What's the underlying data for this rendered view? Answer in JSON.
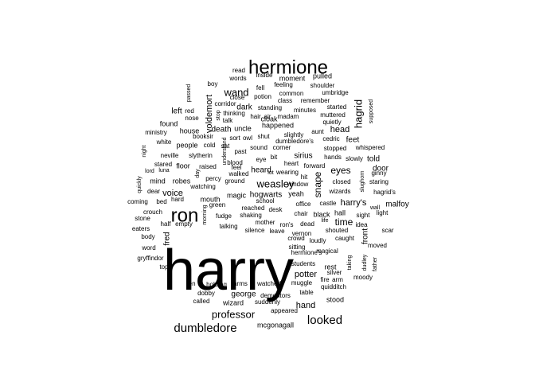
{
  "chart_data": {
    "type": "wordcloud",
    "title": "",
    "color": "#000000",
    "words": [
      {
        "text": "harry",
        "freq": 100
      },
      {
        "text": "hermione",
        "freq": 40
      },
      {
        "text": "ron",
        "freq": 38
      },
      {
        "text": "dumbledore",
        "freq": 22
      },
      {
        "text": "looked",
        "freq": 22
      },
      {
        "text": "professor",
        "freq": 20
      },
      {
        "text": "wand",
        "freq": 18
      },
      {
        "text": "weasley",
        "freq": 17
      },
      {
        "text": "hagrid",
        "freq": 15
      },
      {
        "text": "voice",
        "freq": 16
      },
      {
        "text": "head",
        "freq": 16
      },
      {
        "text": "eyes",
        "freq": 16
      },
      {
        "text": "time",
        "freq": 17
      },
      {
        "text": "harry's",
        "freq": 15
      },
      {
        "text": "potter",
        "freq": 14
      },
      {
        "text": "hand",
        "freq": 14
      },
      {
        "text": "snape",
        "freq": 14
      },
      {
        "text": "malfoy",
        "freq": 12
      },
      {
        "text": "door",
        "freq": 12
      },
      {
        "text": "told",
        "freq": 12
      },
      {
        "text": "feet",
        "freq": 12
      },
      {
        "text": "hogwarts",
        "freq": 12
      },
      {
        "text": "heard",
        "freq": 12
      },
      {
        "text": "left",
        "freq": 12
      },
      {
        "text": "voldemort",
        "freq": 11
      },
      {
        "text": "death",
        "freq": 11
      },
      {
        "text": "uncle",
        "freq": 10
      },
      {
        "text": "front",
        "freq": 10
      },
      {
        "text": "sirius",
        "freq": 10
      },
      {
        "text": "dark",
        "freq": 10
      },
      {
        "text": "fred",
        "freq": 10
      },
      {
        "text": "people",
        "freq": 10
      },
      {
        "text": "george",
        "freq": 10
      },
      {
        "text": "stood",
        "freq": 9
      },
      {
        "text": "wizard",
        "freq": 9
      },
      {
        "text": "mcgonagall",
        "freq": 9
      },
      {
        "text": "happened",
        "freq": 9
      },
      {
        "text": "found",
        "freq": 9
      },
      {
        "text": "house",
        "freq": 9
      },
      {
        "text": "floor",
        "freq": 9
      },
      {
        "text": "mind",
        "freq": 9
      },
      {
        "text": "robes",
        "freq": 9
      },
      {
        "text": "moment",
        "freq": 9
      },
      {
        "text": "pulled",
        "freq": 9
      },
      {
        "text": "cloak",
        "freq": 9
      },
      {
        "text": "yeah",
        "freq": 9
      },
      {
        "text": "rest",
        "freq": 8
      },
      {
        "text": "magic",
        "freq": 9
      },
      {
        "text": "mouth",
        "freq": 8
      },
      {
        "text": "hall",
        "freq": 8
      },
      {
        "text": "black",
        "freq": 9
      },
      {
        "text": "hermione's",
        "freq": 7
      },
      {
        "text": "read",
        "freq": 6
      },
      {
        "text": "words",
        "freq": 6
      },
      {
        "text": "inside",
        "freq": 6
      },
      {
        "text": "feeling",
        "freq": 6
      },
      {
        "text": "shoulder",
        "freq": 6
      },
      {
        "text": "boy",
        "freq": 6
      },
      {
        "text": "fell",
        "freq": 6
      },
      {
        "text": "common",
        "freq": 6
      },
      {
        "text": "umbridge",
        "freq": 6
      },
      {
        "text": "passed",
        "freq": 5
      },
      {
        "text": "close",
        "freq": 6
      },
      {
        "text": "potion",
        "freq": 6
      },
      {
        "text": "class",
        "freq": 6
      },
      {
        "text": "remember",
        "freq": 6
      },
      {
        "text": "corridor",
        "freq": 6
      },
      {
        "text": "standing",
        "freq": 6
      },
      {
        "text": "minutes",
        "freq": 6
      },
      {
        "text": "started",
        "freq": 6
      },
      {
        "text": "red",
        "freq": 5
      },
      {
        "text": "stop",
        "freq": 5
      },
      {
        "text": "thinking",
        "freq": 6
      },
      {
        "text": "hair",
        "freq": 6
      },
      {
        "text": "air",
        "freq": 6
      },
      {
        "text": "madam",
        "freq": 6
      },
      {
        "text": "muttered",
        "freq": 6
      },
      {
        "text": "supposed",
        "freq": 5
      },
      {
        "text": "nose",
        "freq": 6
      },
      {
        "text": "talk",
        "freq": 6
      },
      {
        "text": "quietly",
        "freq": 6
      },
      {
        "text": "ministry",
        "freq": 6
      },
      {
        "text": "aunt",
        "freq": 6
      },
      {
        "text": "booksir",
        "freq": 6
      },
      {
        "text": "sort",
        "freq": 6
      },
      {
        "text": "owl",
        "freq": 6
      },
      {
        "text": "slightly",
        "freq": 6
      },
      {
        "text": "cedric",
        "freq": 6
      },
      {
        "text": "white",
        "freq": 6
      },
      {
        "text": "cold",
        "freq": 6
      },
      {
        "text": "sat",
        "freq": 6
      },
      {
        "text": "shut",
        "freq": 6
      },
      {
        "text": "dumbledore's",
        "freq": 6
      },
      {
        "text": "night",
        "freq": 5
      },
      {
        "text": "understand",
        "freq": 5
      },
      {
        "text": "sound",
        "freq": 6
      },
      {
        "text": "corner",
        "freq": 6
      },
      {
        "text": "stopped",
        "freq": 6
      },
      {
        "text": "whispered",
        "freq": 6
      },
      {
        "text": "past",
        "freq": 6
      },
      {
        "text": "neville",
        "freq": 6
      },
      {
        "text": "slytherin",
        "freq": 6
      },
      {
        "text": "hands",
        "freq": 6
      },
      {
        "text": "slowly",
        "freq": 6
      },
      {
        "text": "eye",
        "freq": 6
      },
      {
        "text": "bit",
        "freq": 6
      },
      {
        "text": "stared",
        "freq": 6
      },
      {
        "text": "raised",
        "freq": 6
      },
      {
        "text": "blood",
        "freq": 6
      },
      {
        "text": "heart",
        "freq": 6
      },
      {
        "text": "forward",
        "freq": 6
      },
      {
        "text": "lord",
        "freq": 5
      },
      {
        "text": "luna",
        "freq": 5
      },
      {
        "text": "feel",
        "freq": 6
      },
      {
        "text": "wearing",
        "freq": 6
      },
      {
        "text": "ginny",
        "freq": 6
      },
      {
        "text": "day",
        "freq": 5
      },
      {
        "text": "percy",
        "freq": 6
      },
      {
        "text": "walked",
        "freq": 6
      },
      {
        "text": "lot",
        "freq": 6
      },
      {
        "text": "closed",
        "freq": 6
      },
      {
        "text": "staring",
        "freq": 6
      },
      {
        "text": "hit",
        "freq": 6
      },
      {
        "text": "ground",
        "freq": 6
      },
      {
        "text": "window",
        "freq": 6
      },
      {
        "text": "quickly",
        "freq": 5
      },
      {
        "text": "watching",
        "freq": 6
      },
      {
        "text": "wizards",
        "freq": 6
      },
      {
        "text": "hagrid's",
        "freq": 6
      },
      {
        "text": "dear",
        "freq": 6
      },
      {
        "text": "coming",
        "freq": 6
      },
      {
        "text": "bed",
        "freq": 6
      },
      {
        "text": "green",
        "freq": 6
      },
      {
        "text": "school",
        "freq": 6
      },
      {
        "text": "office",
        "freq": 6
      },
      {
        "text": "castle",
        "freq": 6
      },
      {
        "text": "wall",
        "freq": 5
      },
      {
        "text": "light",
        "freq": 6
      },
      {
        "text": "hard",
        "freq": 6
      },
      {
        "text": "crouch",
        "freq": 6
      },
      {
        "text": "morning",
        "freq": 5
      },
      {
        "text": "fudge",
        "freq": 6
      },
      {
        "text": "reached",
        "freq": 6
      },
      {
        "text": "desk",
        "freq": 6
      },
      {
        "text": "chair",
        "freq": 6
      },
      {
        "text": "shouted",
        "freq": 6
      },
      {
        "text": "sight",
        "freq": 6
      },
      {
        "text": "stone",
        "freq": 6
      },
      {
        "text": "half",
        "freq": 6
      },
      {
        "text": "empty",
        "freq": 6
      },
      {
        "text": "shaking",
        "freq": 6
      },
      {
        "text": "mother",
        "freq": 6
      },
      {
        "text": "ron's",
        "freq": 6
      },
      {
        "text": "dead",
        "freq": 6
      },
      {
        "text": "life",
        "freq": 5
      },
      {
        "text": "idea",
        "freq": 6
      },
      {
        "text": "eaters",
        "freq": 6
      },
      {
        "text": "talking",
        "freq": 6
      },
      {
        "text": "silence",
        "freq": 6
      },
      {
        "text": "leave",
        "freq": 6
      },
      {
        "text": "vernon",
        "freq": 6
      },
      {
        "text": "scar",
        "freq": 6
      },
      {
        "text": "body",
        "freq": 6
      },
      {
        "text": "crowd",
        "freq": 6
      },
      {
        "text": "loudly",
        "freq": 6
      },
      {
        "text": "caught",
        "freq": 6
      },
      {
        "text": "word",
        "freq": 6
      },
      {
        "text": "sitting",
        "freq": 6
      },
      {
        "text": "magical",
        "freq": 6
      },
      {
        "text": "moved",
        "freq": 6
      },
      {
        "text": "gryffindor",
        "freq": 6
      },
      {
        "text": "students",
        "freq": 6
      },
      {
        "text": "taking",
        "freq": 5
      },
      {
        "text": "top",
        "freq": 6
      },
      {
        "text": "silver",
        "freq": 6
      },
      {
        "text": "moody",
        "freq": 6
      },
      {
        "text": "father",
        "freq": 5
      },
      {
        "text": "ten",
        "freq": 6
      },
      {
        "text": "holding",
        "freq": 6
      },
      {
        "text": "arms",
        "freq": 6
      },
      {
        "text": "watched",
        "freq": 6
      },
      {
        "text": "muggle",
        "freq": 6
      },
      {
        "text": "fire",
        "freq": 6
      },
      {
        "text": "arm",
        "freq": 6
      },
      {
        "text": "quidditch",
        "freq": 6
      },
      {
        "text": "dudley",
        "freq": 5
      },
      {
        "text": "dobby",
        "freq": 6
      },
      {
        "text": "table",
        "freq": 6
      },
      {
        "text": "called",
        "freq": 6
      },
      {
        "text": "suddenly",
        "freq": 6
      },
      {
        "text": "dementors",
        "freq": 6
      },
      {
        "text": "appeared",
        "freq": 6
      },
      {
        "text": "slughorn",
        "freq": 5
      }
    ]
  }
}
